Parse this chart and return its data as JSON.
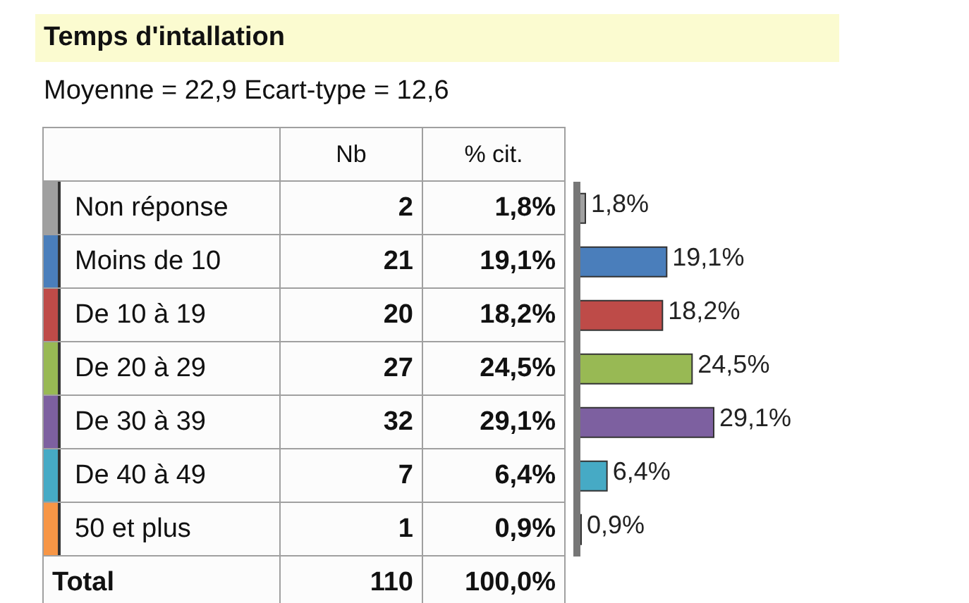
{
  "chart_data": {
    "type": "bar",
    "orientation": "horizontal",
    "title": "Temps d'intallation",
    "subtitle": "Moyenne = 22,9   Ecart-type = 12,6",
    "categories": [
      "Non réponse",
      "Moins de 10",
      "De 10 à 19",
      "De 20 à 29",
      "De 30 à 39",
      "De 40 à 49",
      "50 et plus"
    ],
    "series": [
      {
        "name": "% cit.",
        "type": "bar",
        "colors": [
          "#a0a0a0",
          "#4a7ebb",
          "#be4b48",
          "#98b954",
          "#7d60a0",
          "#46aac5",
          "#f79646"
        ],
        "values": [
          1.8,
          19.1,
          18.2,
          24.5,
          29.1,
          6.4,
          0.9
        ],
        "value_labels": [
          "1,8%",
          "19,1%",
          "18,2%",
          "24,5%",
          "29,1%",
          "6,4%",
          "0,9%"
        ]
      }
    ],
    "annotations": [
      "Nb",
      "2",
      "21",
      "20",
      "27",
      "32",
      "7",
      "1",
      "Total",
      "110",
      "100,0%"
    ]
  }
}
